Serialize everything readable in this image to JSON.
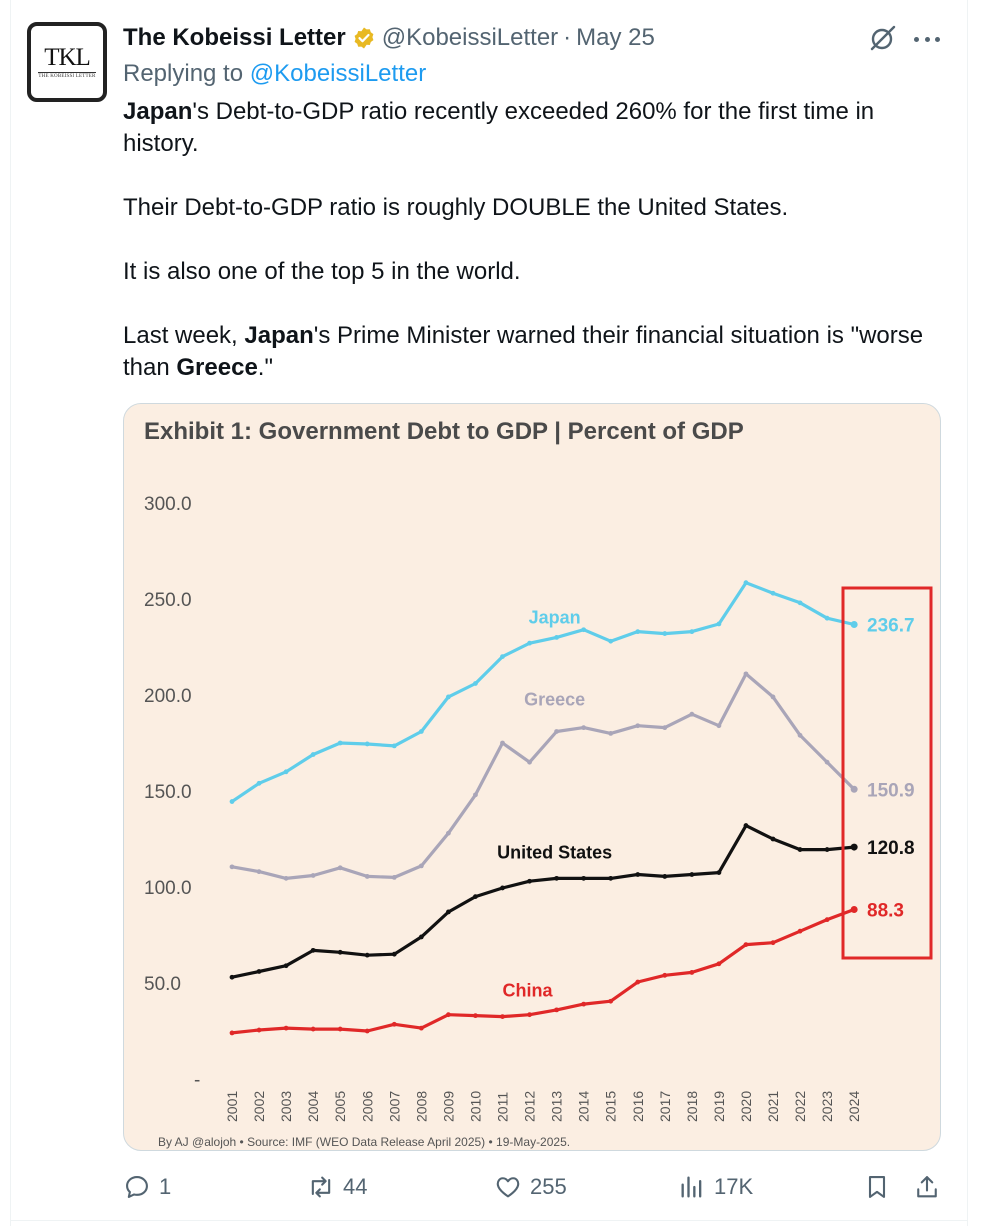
{
  "tweet": {
    "author": {
      "display_name": "The Kobeissi Letter",
      "handle": "@KobeissiLetter",
      "avatar_monogram": "TKL",
      "avatar_subtext": "THE KOBEISSI LETTER"
    },
    "separator": "·",
    "date": "May 25",
    "replying_to_label": "Replying to",
    "replying_to_handle": "@KobeissiLetter",
    "text": {
      "p1_bold": "Japan",
      "p1_rest": "'s Debt-to-GDP ratio recently exceeded 260% for the first time in history.",
      "p2": "Their Debt-to-GDP ratio is roughly DOUBLE the United States.",
      "p3": "It is also one of the top 5 in the world.",
      "p4_a": "Last week, ",
      "p4_bold1": "Japan",
      "p4_b": "'s Prime Minister warned their financial situation is \"worse than ",
      "p4_bold2": "Greece",
      "p4_c": ".\""
    },
    "stats": {
      "replies": "1",
      "reposts": "44",
      "likes": "255",
      "views": "17K"
    }
  },
  "colors": {
    "japan": "#5fcdea",
    "greece": "#a9a5b8",
    "united_states": "#111111",
    "china": "#e02828",
    "highlight_box": "#e02828",
    "chart_bg": "#fbeee2",
    "link": "#1d9bf0",
    "verified_gold": "#e8b923"
  },
  "chart_data": {
    "type": "line",
    "title": "Exhibit 1: Government Debt to GDP | Percent of GDP",
    "source": "By AJ @alojoh • Source: IMF (WEO Data Release April 2025) • 19-May-2025.",
    "x": [
      "2001",
      "2002",
      "2003",
      "2004",
      "2005",
      "2006",
      "2007",
      "2008",
      "2009",
      "2010",
      "2011",
      "2012",
      "2013",
      "2014",
      "2015",
      "2016",
      "2017",
      "2018",
      "2019",
      "2020",
      "2021",
      "2022",
      "2023",
      "2024"
    ],
    "yticks": [
      "300.0",
      "250.0",
      "200.0",
      "150.0",
      "100.0",
      "50.0",
      "-"
    ],
    "ylim": [
      0,
      300
    ],
    "grid": false,
    "legend": "inline labels",
    "series": [
      {
        "name": "Japan",
        "key": "japan",
        "end_label": "236.7",
        "values": [
          144.5,
          154,
          160,
          169,
          175,
          174.5,
          173.5,
          181,
          199,
          206,
          220,
          227,
          230,
          234,
          228,
          233,
          232,
          233,
          237,
          258.5,
          253,
          248,
          240,
          236.7
        ]
      },
      {
        "name": "Greece",
        "key": "greece",
        "end_label": "150.9",
        "values": [
          110.5,
          108,
          104.5,
          106,
          110,
          105.5,
          105,
          111,
          128,
          148,
          175,
          165,
          181,
          183,
          180,
          184,
          183,
          190,
          184,
          211,
          199,
          179,
          165,
          150.9
        ]
      },
      {
        "name": "United States",
        "key": "united_states",
        "end_label": "120.8",
        "values": [
          53,
          56,
          59,
          67,
          66,
          64.5,
          65,
          74,
          87,
          95,
          99.5,
          103,
          104.5,
          104.5,
          104.5,
          106.5,
          105.5,
          106.5,
          107.5,
          132,
          125,
          119.5,
          119.5,
          120.8
        ]
      },
      {
        "name": "China",
        "key": "china",
        "end_label": "88.3",
        "values": [
          24,
          25.5,
          26.5,
          26,
          26,
          25,
          28.5,
          26.5,
          33.5,
          33,
          32.5,
          33.5,
          36,
          39,
          40.5,
          50.5,
          54,
          55.5,
          60,
          70,
          71,
          77,
          83,
          88.3
        ]
      }
    ]
  }
}
